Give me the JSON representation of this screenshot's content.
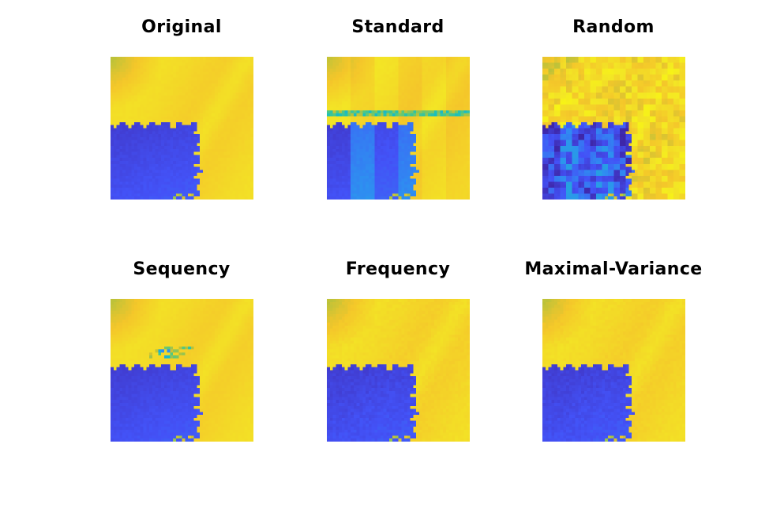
{
  "figure": {
    "panels": [
      {
        "id": "original",
        "title": "Original",
        "variant": "original"
      },
      {
        "id": "standard",
        "title": "Standard",
        "variant": "standard"
      },
      {
        "id": "random",
        "title": "Random",
        "variant": "random"
      },
      {
        "id": "sequency",
        "title": "Sequency",
        "variant": "sequency"
      },
      {
        "id": "frequency",
        "title": "Frequency",
        "variant": "frequency"
      },
      {
        "id": "maximal-variance",
        "title": "Maximal-Variance",
        "variant": "maximal"
      }
    ]
  },
  "colors": {
    "background": "#ffffff",
    "title_text": "#000000",
    "colormap": [
      "#3e26a8",
      "#4352f7",
      "#2d92f0",
      "#17bec1",
      "#55c87e",
      "#b8c23a",
      "#f4c62a",
      "#f3e625",
      "#f9fb0e"
    ]
  }
}
